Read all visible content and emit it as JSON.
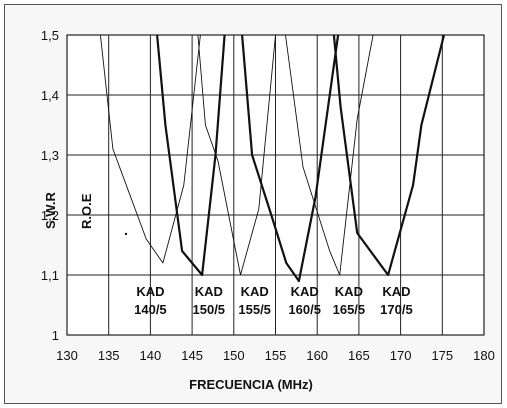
{
  "chart_data": {
    "type": "line",
    "title": "",
    "xlabel": "FRECUENCIA (MHz)",
    "ylabel": "R.O.E. / SW",
    "ylabel_parts": [
      "R.O.E",
      "S.W.R"
    ],
    "xlim": [
      130,
      180
    ],
    "ylim": [
      1,
      1.5
    ],
    "xticks": [
      "130",
      "135",
      "140",
      "145",
      "150",
      "155",
      "160",
      "165",
      "170",
      "175",
      "180"
    ],
    "yticks": [
      "1",
      "1,1",
      "1,2",
      "1,3",
      "1,4",
      "1,5"
    ],
    "grid": true,
    "series": [
      {
        "name": "KAD 140/5",
        "line1": "KAD",
        "line2": "140/5",
        "weight": "thin",
        "x": [
          134.0,
          135.5,
          139.5,
          141.5,
          144.0,
          146.0
        ],
        "y": [
          1.5,
          1.31,
          1.16,
          1.12,
          1.25,
          1.5
        ]
      },
      {
        "name": "KAD 150/5",
        "line1": "KAD",
        "line2": "150/5",
        "weight": "thick",
        "x": [
          140.8,
          141.8,
          143.8,
          146.2,
          147.8,
          148.9
        ],
        "y": [
          1.5,
          1.35,
          1.14,
          1.1,
          1.3,
          1.5
        ]
      },
      {
        "name": "KAD 155/5",
        "line1": "KAD",
        "line2": "155/5",
        "weight": "thin",
        "x": [
          145.7,
          146.6,
          148.1,
          150.8,
          153.0,
          155.0
        ],
        "y": [
          1.5,
          1.35,
          1.29,
          1.1,
          1.21,
          1.5
        ]
      },
      {
        "name": "KAD 160/5",
        "line1": "KAD",
        "line2": "160/5",
        "weight": "thick",
        "x": [
          151.0,
          152.2,
          154.5,
          156.3,
          157.8,
          159.8,
          162.5
        ],
        "y": [
          1.5,
          1.3,
          1.2,
          1.12,
          1.09,
          1.23,
          1.5
        ]
      },
      {
        "name": "KAD 165/5",
        "line1": "KAD",
        "line2": "165/5",
        "weight": "thin",
        "x": [
          156.2,
          158.3,
          161.5,
          162.7,
          164.8,
          166.7
        ],
        "y": [
          1.5,
          1.28,
          1.14,
          1.1,
          1.36,
          1.5
        ]
      },
      {
        "name": "KAD 170/5",
        "line1": "KAD",
        "line2": "170/5",
        "weight": "thick",
        "x": [
          162.0,
          162.8,
          164.8,
          168.5,
          171.5,
          172.5,
          175.2
        ],
        "y": [
          1.5,
          1.38,
          1.17,
          1.1,
          1.25,
          1.35,
          1.5
        ]
      }
    ]
  }
}
